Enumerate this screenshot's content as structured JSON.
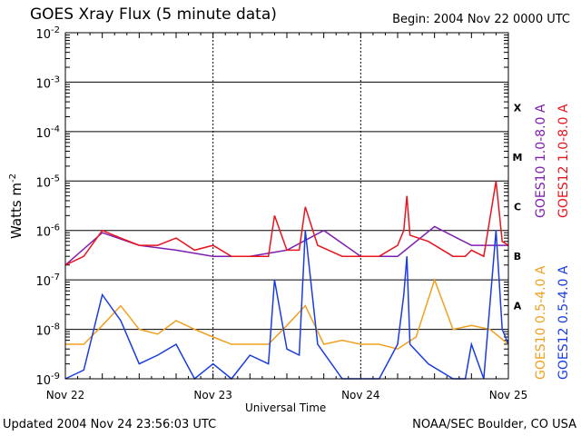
{
  "header": {
    "title": "GOES Xray Flux (5 minute data)",
    "begin": "Begin:  2004 Nov 22 0000 UTC"
  },
  "footer": {
    "updated": "Updated 2004 Nov 24 23:56:03 UTC",
    "credit": "NOAA/SEC Boulder, CO USA"
  },
  "chart_data": {
    "type": "line",
    "title": "GOES Xray Flux (5 minute data)",
    "xlabel": "Universal Time",
    "ylabel": "Watts m",
    "ylabel_sup": "-2",
    "y_scale": "log",
    "ylim": [
      1e-09,
      0.01
    ],
    "xlim": [
      "2004-11-22",
      "2004-11-25"
    ],
    "grid": true,
    "x_ticks": [
      "Nov 22",
      "Nov 23",
      "Nov 24",
      "Nov 25"
    ],
    "y_ticks": [
      {
        "base": "10",
        "exp": "-2"
      },
      {
        "base": "10",
        "exp": "-3"
      },
      {
        "base": "10",
        "exp": "-4"
      },
      {
        "base": "10",
        "exp": "-5"
      },
      {
        "base": "10",
        "exp": "-6"
      },
      {
        "base": "10",
        "exp": "-7"
      },
      {
        "base": "10",
        "exp": "-8"
      },
      {
        "base": "10",
        "exp": "-9"
      }
    ],
    "flare_classes": [
      "X",
      "M",
      "C",
      "B",
      "A"
    ],
    "legend_placement": "right, vertical",
    "series": [
      {
        "name": "GOES10 1.0-8.0 A",
        "color": "#7f1fb0",
        "x": [
          "2004-11-22 00:00",
          "2004-11-22 06:00",
          "2004-11-22 12:00",
          "2004-11-22 18:00",
          "2004-11-23 00:00",
          "2004-11-23 06:00",
          "2004-11-23 12:00",
          "2004-11-23 18:00",
          "2004-11-24 00:00",
          "2004-11-24 06:00",
          "2004-11-24 12:00",
          "2004-11-24 18:00",
          "2004-11-25 00:00"
        ],
        "values": [
          2e-07,
          9e-07,
          5e-07,
          4e-07,
          3e-07,
          3e-07,
          4e-07,
          1e-06,
          3e-07,
          3e-07,
          1.2e-06,
          5e-07,
          5e-07
        ]
      },
      {
        "name": "GOES12 1.0-8.0 A",
        "color": "#e8141e",
        "x": [
          "2004-11-22 00:00",
          "2004-11-22 03:00",
          "2004-11-22 06:00",
          "2004-11-22 09:00",
          "2004-11-22 12:00",
          "2004-11-22 15:00",
          "2004-11-22 18:00",
          "2004-11-22 21:00",
          "2004-11-23 00:00",
          "2004-11-23 03:00",
          "2004-11-23 06:00",
          "2004-11-23 09:00",
          "2004-11-23 10:00",
          "2004-11-23 12:00",
          "2004-11-23 14:00",
          "2004-11-23 15:00",
          "2004-11-23 17:00",
          "2004-11-23 21:00",
          "2004-11-24 00:00",
          "2004-11-24 03:00",
          "2004-11-24 06:00",
          "2004-11-24 07:00",
          "2004-11-24 07:30",
          "2004-11-24 08:00",
          "2004-11-24 11:00",
          "2004-11-24 15:00",
          "2004-11-24 17:00",
          "2004-11-24 18:00",
          "2004-11-24 20:00",
          "2004-11-24 22:00",
          "2004-11-24 23:00",
          "2004-11-25 00:00"
        ],
        "values": [
          2e-07,
          3e-07,
          1e-06,
          7e-07,
          5e-07,
          5e-07,
          7e-07,
          4e-07,
          5e-07,
          3e-07,
          3e-07,
          3e-07,
          2e-06,
          4e-07,
          4e-07,
          3e-06,
          5e-07,
          3e-07,
          3e-07,
          3e-07,
          5e-07,
          1e-06,
          5e-06,
          8e-07,
          6e-07,
          3e-07,
          3e-07,
          4e-07,
          3e-07,
          1e-05,
          6e-07,
          5e-07
        ]
      },
      {
        "name": "GOES10 0.5-4.0 A",
        "color": "#f0a020",
        "x": [
          "2004-11-22 00:00",
          "2004-11-22 03:00",
          "2004-11-22 06:00",
          "2004-11-22 09:00",
          "2004-11-22 12:00",
          "2004-11-22 15:00",
          "2004-11-22 18:00",
          "2004-11-22 21:00",
          "2004-11-23 00:00",
          "2004-11-23 03:00",
          "2004-11-23 06:00",
          "2004-11-23 09:00",
          "2004-11-23 12:00",
          "2004-11-23 15:00",
          "2004-11-23 18:00",
          "2004-11-23 21:00",
          "2004-11-24 00:00",
          "2004-11-24 03:00",
          "2004-11-24 06:00",
          "2004-11-24 09:00",
          "2004-11-24 12:00",
          "2004-11-24 15:00",
          "2004-11-24 18:00",
          "2004-11-24 21:00",
          "2004-11-25 00:00"
        ],
        "values": [
          5e-09,
          5e-09,
          1.2e-08,
          3e-08,
          1e-08,
          8e-09,
          1.5e-08,
          1e-08,
          7e-09,
          5e-09,
          5e-09,
          5e-09,
          1.2e-08,
          3e-08,
          5e-09,
          6e-09,
          5e-09,
          5e-09,
          4e-09,
          7e-09,
          1e-07,
          1e-08,
          1.2e-08,
          1e-08,
          5e-09
        ]
      },
      {
        "name": "GOES12 0.5-4.0 A",
        "color": "#1a3ce0",
        "x": [
          "2004-11-22 00:00",
          "2004-11-22 03:00",
          "2004-11-22 06:00",
          "2004-11-22 09:00",
          "2004-11-22 12:00",
          "2004-11-22 15:00",
          "2004-11-22 18:00",
          "2004-11-22 21:00",
          "2004-11-23 00:00",
          "2004-11-23 03:00",
          "2004-11-23 06:00",
          "2004-11-23 09:00",
          "2004-11-23 10:00",
          "2004-11-23 12:00",
          "2004-11-23 14:00",
          "2004-11-23 15:00",
          "2004-11-23 17:00",
          "2004-11-23 21:00",
          "2004-11-24 00:00",
          "2004-11-24 03:00",
          "2004-11-24 06:00",
          "2004-11-24 07:00",
          "2004-11-24 07:30",
          "2004-11-24 08:00",
          "2004-11-24 11:00",
          "2004-11-24 15:00",
          "2004-11-24 17:00",
          "2004-11-24 18:00",
          "2004-11-24 20:00",
          "2004-11-24 22:00",
          "2004-11-24 23:00",
          "2004-11-25 00:00"
        ],
        "values": [
          1e-09,
          1.5e-09,
          5e-08,
          1.5e-08,
          2e-09,
          3e-09,
          5e-09,
          1e-09,
          2e-09,
          1e-09,
          3e-09,
          2e-09,
          1e-07,
          4e-09,
          3e-09,
          1e-06,
          5e-09,
          1e-09,
          1e-09,
          1e-09,
          5e-09,
          5e-08,
          3e-07,
          5e-09,
          2e-09,
          1e-09,
          1e-09,
          5e-09,
          1e-09,
          1e-06,
          1e-08,
          5e-09
        ]
      }
    ]
  }
}
